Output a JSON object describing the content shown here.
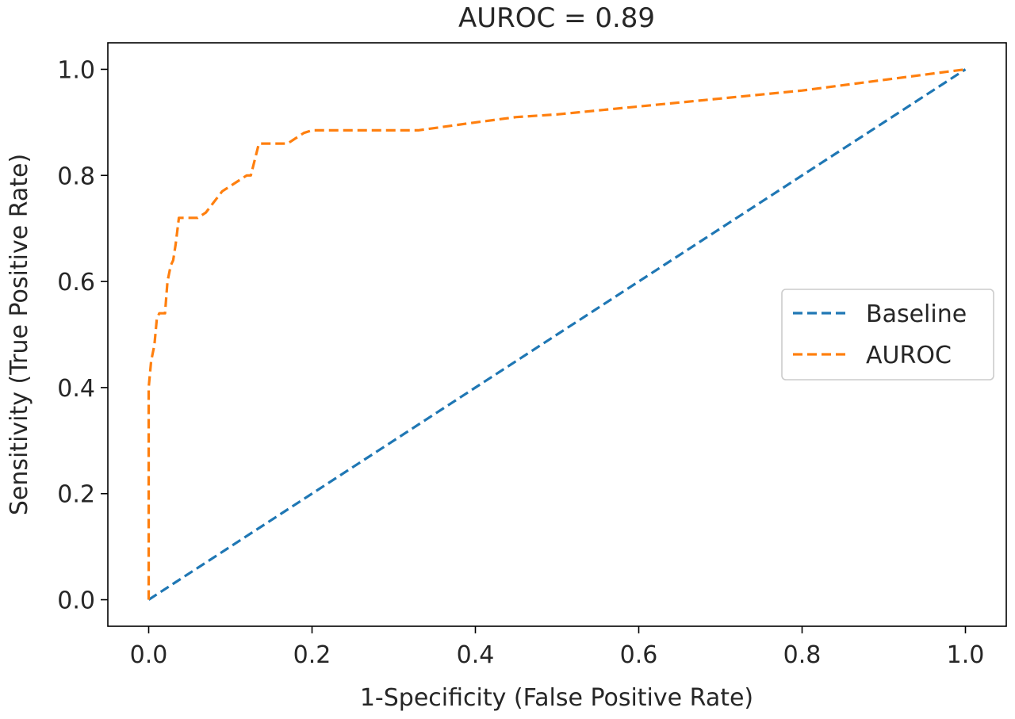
{
  "chart_data": {
    "type": "line",
    "title": "AUROC = 0.89",
    "xlabel": "1-Specificity (False Positive Rate)",
    "ylabel": "Sensitivity (True Positive Rate)",
    "xlim": [
      -0.05,
      1.05
    ],
    "ylim": [
      -0.05,
      1.05
    ],
    "xticks": [
      0.0,
      0.2,
      0.4,
      0.6,
      0.8,
      1.0
    ],
    "yticks": [
      0.0,
      0.2,
      0.4,
      0.6,
      0.8,
      1.0
    ],
    "xtick_labels": [
      "0.0",
      "0.2",
      "0.4",
      "0.6",
      "0.8",
      "1.0"
    ],
    "ytick_labels": [
      "0.0",
      "0.2",
      "0.4",
      "0.6",
      "0.8",
      "1.0"
    ],
    "grid": false,
    "legend_position": "center-right",
    "series": [
      {
        "name": "Baseline",
        "color": "#1f77b4",
        "dash": "dashed",
        "x": [
          0.0,
          1.0
        ],
        "y": [
          0.0,
          1.0
        ]
      },
      {
        "name": "AUROC",
        "color": "#ff7f0e",
        "dash": "dashed",
        "x": [
          0.0,
          0.0,
          0.003,
          0.007,
          0.01,
          0.013,
          0.017,
          0.02,
          0.023,
          0.027,
          0.03,
          0.033,
          0.037,
          0.04,
          0.06,
          0.07,
          0.08,
          0.09,
          0.1,
          0.11,
          0.12,
          0.125,
          0.13,
          0.135,
          0.14,
          0.16,
          0.17,
          0.18,
          0.19,
          0.2,
          0.25,
          0.33,
          0.4,
          0.45,
          0.5,
          0.6,
          0.7,
          0.8,
          0.9,
          1.0
        ],
        "y": [
          0.0,
          0.4,
          0.45,
          0.48,
          0.53,
          0.54,
          0.54,
          0.54,
          0.6,
          0.63,
          0.64,
          0.67,
          0.72,
          0.72,
          0.72,
          0.73,
          0.75,
          0.77,
          0.78,
          0.79,
          0.8,
          0.8,
          0.83,
          0.86,
          0.86,
          0.86,
          0.86,
          0.87,
          0.88,
          0.885,
          0.885,
          0.885,
          0.9,
          0.91,
          0.915,
          0.93,
          0.945,
          0.96,
          0.98,
          1.0
        ]
      }
    ]
  }
}
